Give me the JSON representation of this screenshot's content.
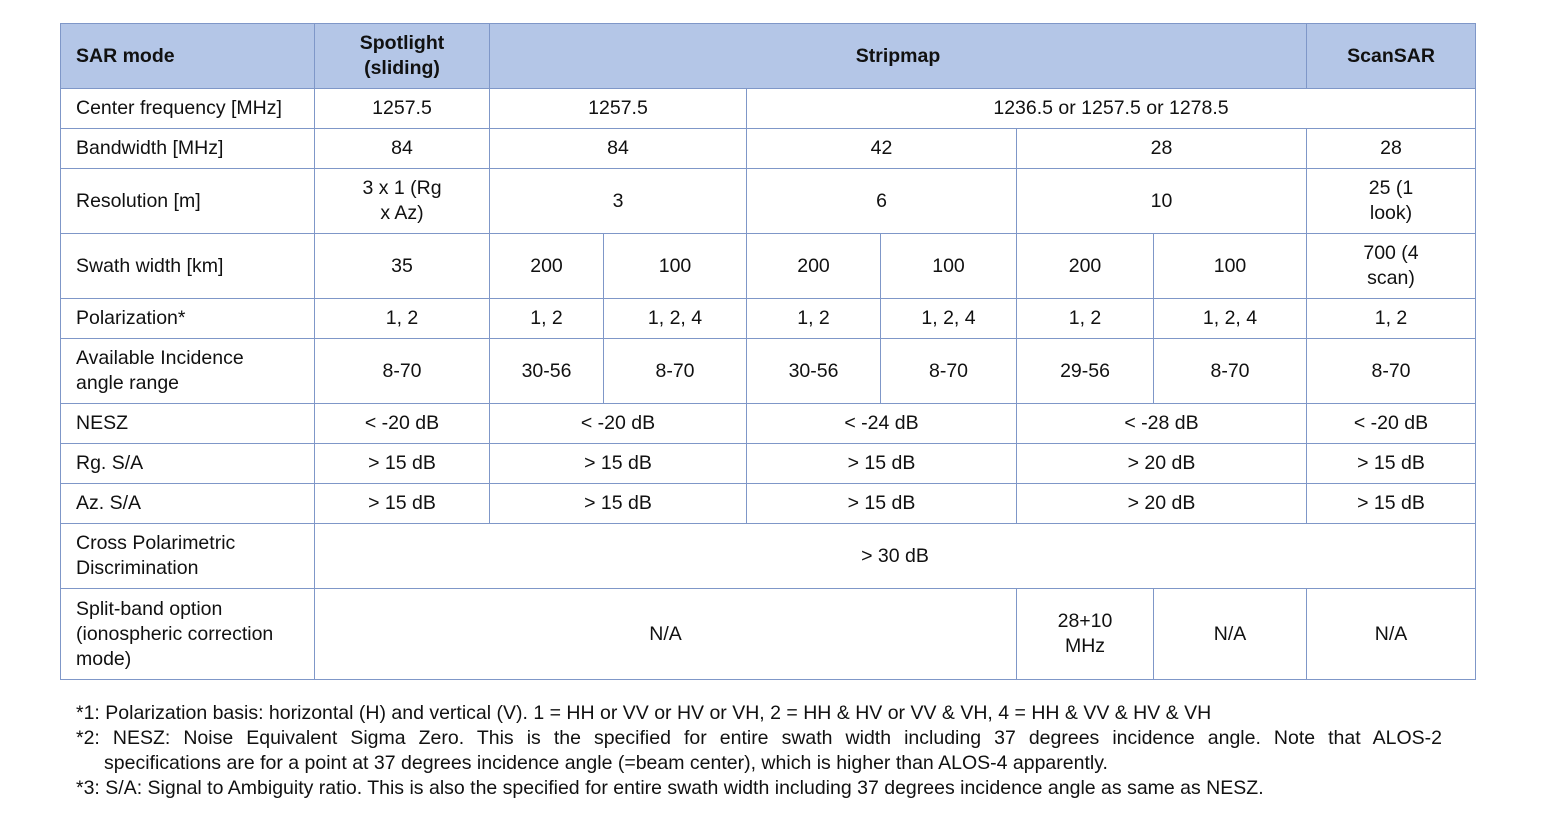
{
  "header": {
    "sar_mode": "SAR mode",
    "spotlight": "Spotlight (sliding)",
    "stripmap": "Stripmap",
    "scansar": "ScanSAR"
  },
  "rows": {
    "center_frequency": {
      "label": "Center frequency [MHz]",
      "spotlight": "1257.5",
      "strip_3m": "1257.5",
      "strip_other": "1236.5 or 1257.5 or 1278.5"
    },
    "bandwidth": {
      "label": "Bandwidth [MHz]",
      "spotlight": "84",
      "strip_3m": "84",
      "strip_6m": "42",
      "strip_10m": "28",
      "scansar": "28"
    },
    "resolution": {
      "label": "Resolution [m]",
      "spotlight": "3 x 1 (Rg x Az)",
      "strip_3m": "3",
      "strip_6m": "6",
      "strip_10m": "10",
      "scansar": "25 (1 look)"
    },
    "swath_width": {
      "label": "Swath width [km]",
      "spotlight": "35",
      "strip_3m_a": "200",
      "strip_3m_b": "100",
      "strip_6m_a": "200",
      "strip_6m_b": "100",
      "strip_10m_a": "200",
      "strip_10m_b": "100",
      "scansar": "700 (4 scan)"
    },
    "polarization": {
      "label": "Polarization*",
      "spotlight": "1, 2",
      "strip_3m_a": "1, 2",
      "strip_3m_b": "1, 2, 4",
      "strip_6m_a": "1, 2",
      "strip_6m_b": "1, 2, 4",
      "strip_10m_a": "1, 2",
      "strip_10m_b": "1, 2, 4",
      "scansar": "1, 2"
    },
    "incidence": {
      "label": "Available Incidence angle range",
      "spotlight": "8-70",
      "strip_3m_a": "30-56",
      "strip_3m_b": "8-70",
      "strip_6m_a": "30-56",
      "strip_6m_b": "8-70",
      "strip_10m_a": "29-56",
      "strip_10m_b": "8-70",
      "scansar": "8-70"
    },
    "nesz": {
      "label": "NESZ",
      "spotlight": "< -20 dB",
      "strip_3m": "< -20 dB",
      "strip_6m": "< -24 dB",
      "strip_10m": "< -28 dB",
      "scansar": "< -20 dB"
    },
    "rg_sa": {
      "label": "Rg. S/A",
      "spotlight": "> 15 dB",
      "strip_3m": "> 15 dB",
      "strip_6m": "> 15 dB",
      "strip_10m": "> 20 dB",
      "scansar": "> 15 dB"
    },
    "az_sa": {
      "label": "Az. S/A",
      "spotlight": "> 15 dB",
      "strip_3m": "> 15 dB",
      "strip_6m": "> 15 dB",
      "strip_10m": "> 20 dB",
      "scansar": "> 15 dB"
    },
    "cross_pol": {
      "label": "Cross Polarimetric Discrimination",
      "value": "> 30 dB"
    },
    "split_band": {
      "label": "Split-band option (ionospheric correction mode)",
      "na_main": "N/A",
      "strip_10m_a": "28+10 MHz",
      "strip_10m_b": "N/A",
      "scansar": "N/A"
    }
  },
  "footnotes": {
    "fn1": "*1:  Polarization basis: horizontal (H) and vertical (V). 1 = HH or VV or HV or VH, 2 = HH & HV or VV & VH, 4 = HH & VV & HV & VH",
    "fn2_line1": "*2: NESZ: Noise Equivalent Sigma Zero. This is the specified for entire swath width including 37 degrees incidence angle. Note that ALOS-2",
    "fn2_line2": "specifications are for a point at 37 degrees incidence angle (=beam center), which is higher than ALOS-4 apparently.",
    "fn3": "*3: S/A: Signal to Ambiguity ratio. This is also the specified for entire swath width including 37 degrees incidence angle as same as NESZ."
  }
}
